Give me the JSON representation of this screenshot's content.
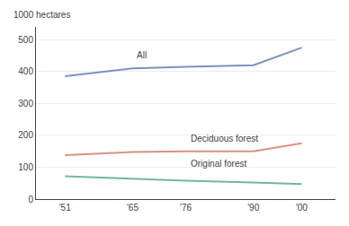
{
  "chart_data": {
    "type": "line",
    "y_label": "1000 hectares",
    "x": [
      1951,
      1965,
      1976,
      1990,
      2000
    ],
    "series": [
      {
        "name": "All",
        "color": "#8090c0",
        "values": [
          385,
          410,
          415,
          420,
          475
        ]
      },
      {
        "name": "Deciduous forest",
        "color": "#e09080",
        "values": [
          138,
          148,
          150,
          150,
          175
        ]
      },
      {
        "name": "Original forest",
        "color": "#70b8a0",
        "values": [
          72,
          64,
          58,
          52,
          47
        ]
      }
    ],
    "annotations": [
      {
        "text": "All",
        "x": 1965,
        "y": 430
      },
      {
        "text": "Deciduous forest",
        "x": 1976,
        "y": 168
      },
      {
        "text": "Original forest",
        "x": 1976,
        "y": 90
      }
    ],
    "xlim": [
      1945,
      2007
    ],
    "xticks": [
      {
        "value": 1951,
        "label": "'51"
      },
      {
        "value": 1965,
        "label": "'65"
      },
      {
        "value": 1976,
        "label": "'76"
      },
      {
        "value": 1990,
        "label": "'90"
      },
      {
        "value": 2000,
        "label": "'00"
      }
    ],
    "ylim": [
      0,
      540
    ],
    "yticks": [
      0,
      100,
      200,
      300,
      400,
      500
    ],
    "grid": true
  }
}
